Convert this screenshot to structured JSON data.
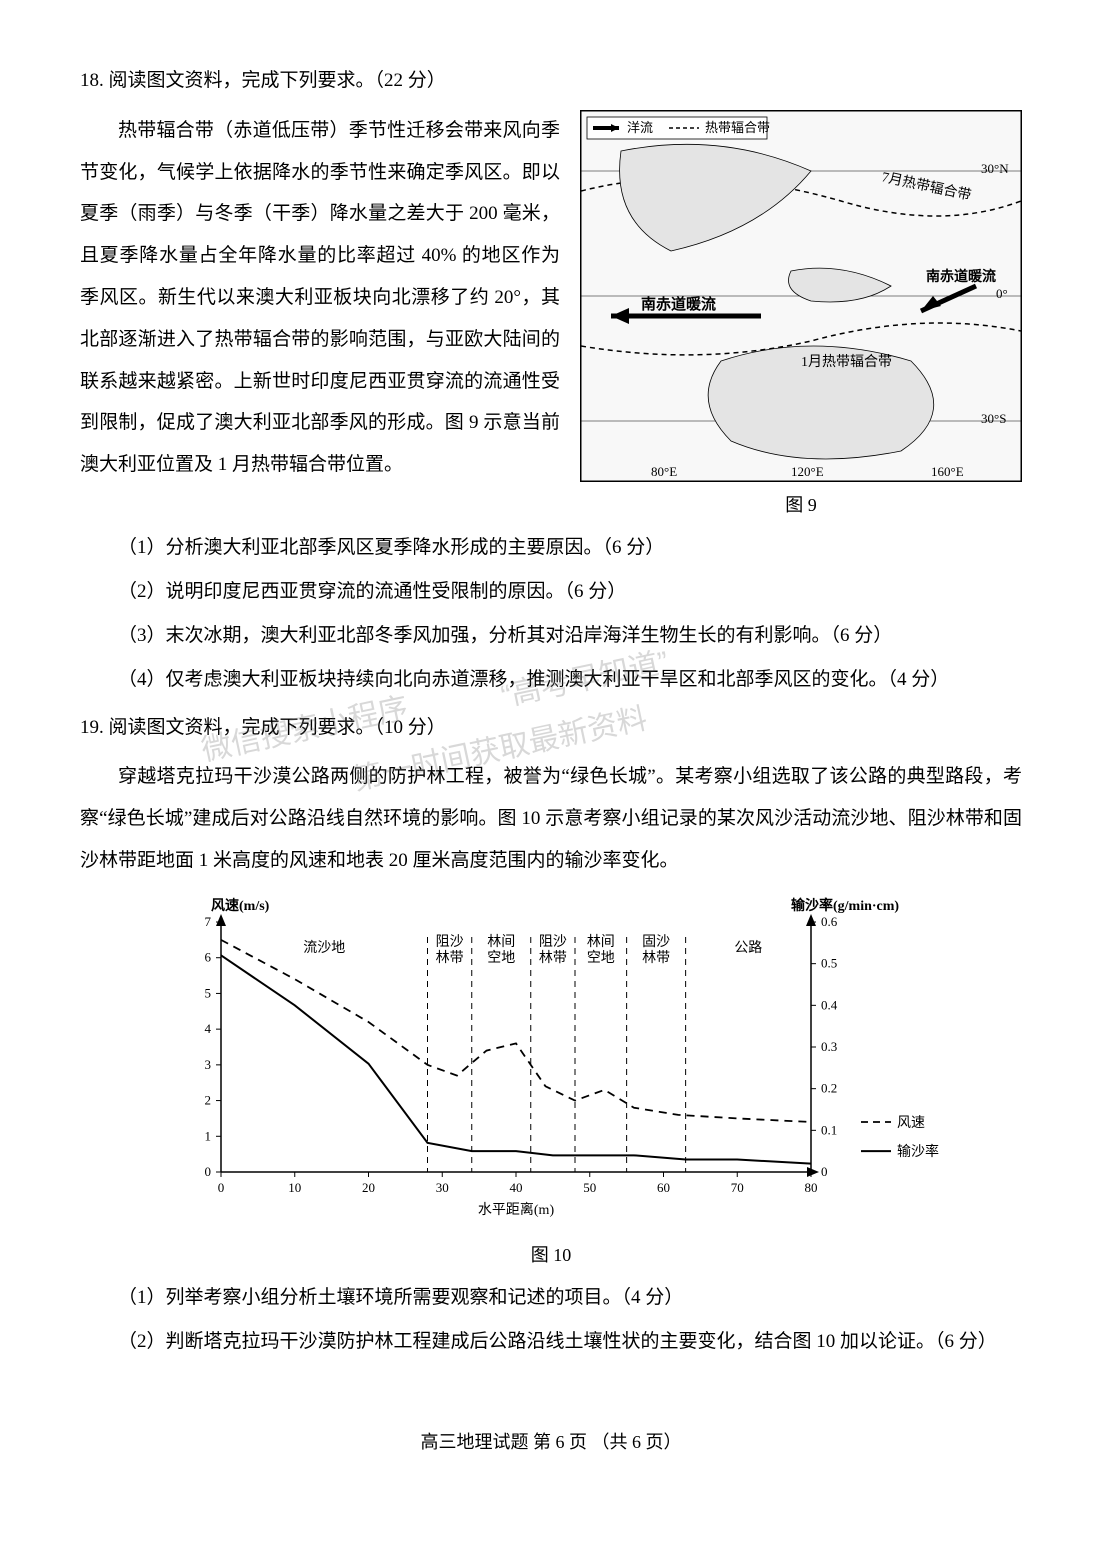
{
  "q18": {
    "header": "18. 阅读图文资料，完成下列要求。（22 分）",
    "paragraph_left": "热带辐合带（赤道低压带）季节性迁移会带来风向季节变化，气候学上依据降水的季节性来确定季风区。即以夏季（雨季）与冬季（干季）降水量之差大于 200 毫米，且夏季降水量占全年降水量的比率超过 40% 的地区作为季风区。新生代以来澳大利亚板块向北漂移了约 20°，其北部逐渐进入了热带辐合带的影响范围，与亚欧大陆间的联系越来越紧密。上新世时印度尼西亚贯穿流的流通性受到限制，促成了澳大利亚北部季风的形成。图 9 示意当前澳大利亚位置及 1 月热带辐合带位置。",
    "paragraph_after": "",
    "figure9": {
      "caption": "图 9",
      "legend_arrow": "洋流",
      "legend_dash": "热带辐合带",
      "label_top": "7月热带辐合带",
      "label_bottom": "1月热带辐合带",
      "label_current_left": "南赤道暖流",
      "label_current_right": "南赤道暖流",
      "xticks": [
        "80°E",
        "120°E",
        "160°E"
      ],
      "yticks": [
        "30°N",
        "0°",
        "30°S"
      ]
    },
    "subs": [
      "（1）分析澳大利亚北部季风区夏季降水形成的主要原因。（6 分）",
      "（2）说明印度尼西亚贯穿流的流通性受限制的原因。（6 分）",
      "（3）末次冰期，澳大利亚北部冬季风加强，分析其对沿岸海洋生物生长的有利影响。（6 分）",
      "（4）仅考虑澳大利亚板块持续向北向赤道漂移，推测澳大利亚干旱区和北部季风区的变化。（4 分）"
    ]
  },
  "q19": {
    "header": "19. 阅读图文资料，完成下列要求。（10 分）",
    "paragraph": "穿越塔克拉玛干沙漠公路两侧的防护林工程，被誉为“绿色长城”。某考察小组选取了该公路的典型路段，考察“绿色长城”建成后对公路沿线自然环境的影响。图 10 示意考察小组记录的某次风沙活动流沙地、阻沙林带和固沙林带距地面 1 米高度的风速和地表 20 厘米高度范围内的输沙率变化。",
    "subs": [
      "（1）列举考察小组分析土壤环境所需要观察和记述的项目。（4 分）",
      "（2）判断塔克拉玛干沙漠防护林工程建成后公路沿线土壤性状的主要变化，结合图 10 加以论证。（6 分）"
    ],
    "chart": {
      "type": "line",
      "title_bottom": "图 10",
      "x_label": "水平距离(m)",
      "y_left_label": "风速(m/s)",
      "y_right_label": "输沙率(g/min·cm)",
      "x_ticks": [
        0,
        10,
        20,
        30,
        40,
        50,
        60,
        70,
        80
      ],
      "y_left_ticks": [
        0,
        1,
        2,
        3,
        4,
        5,
        6,
        7
      ],
      "y_right_ticks": [
        0,
        0.1,
        0.2,
        0.3,
        0.4,
        0.5,
        0.6
      ],
      "x_range": [
        0,
        80
      ],
      "y_left_range": [
        0,
        7
      ],
      "y_right_range": [
        0,
        0.6
      ],
      "regions": [
        "流沙地",
        "阻沙林带",
        "林间空地",
        "阻沙林带",
        "林间空地",
        "固沙林带",
        "公路"
      ],
      "region_boundaries": [
        0,
        28,
        34,
        42,
        48,
        55,
        63,
        80
      ],
      "wind_points": [
        [
          0,
          6.5
        ],
        [
          10,
          5.4
        ],
        [
          20,
          4.2
        ],
        [
          28,
          3.0
        ],
        [
          32,
          2.7
        ],
        [
          36,
          3.4
        ],
        [
          40,
          3.6
        ],
        [
          44,
          2.4
        ],
        [
          48,
          2.0
        ],
        [
          52,
          2.3
        ],
        [
          56,
          1.8
        ],
        [
          62,
          1.6
        ],
        [
          70,
          1.5
        ],
        [
          80,
          1.4
        ]
      ],
      "sand_points": [
        [
          0,
          0.52
        ],
        [
          10,
          0.4
        ],
        [
          20,
          0.26
        ],
        [
          28,
          0.07
        ],
        [
          34,
          0.05
        ],
        [
          40,
          0.05
        ],
        [
          45,
          0.04
        ],
        [
          50,
          0.04
        ],
        [
          56,
          0.04
        ],
        [
          63,
          0.03
        ],
        [
          70,
          0.03
        ],
        [
          80,
          0.02
        ]
      ],
      "legend_wind": "风速",
      "legend_sand": "输沙率",
      "colors": {
        "axis": "#000000",
        "wind_line": "#000000",
        "sand_line": "#000000",
        "background": "#ffffff"
      },
      "line_styles": {
        "wind": "dashed",
        "sand": "solid"
      },
      "font_size_label": 14,
      "font_size_tick": 13
    }
  },
  "watermarks": {
    "w1": "微信搜索小程序",
    "w2": "“高考早知道”",
    "w3": "第一时间获取最新资料"
  },
  "footer": "高三地理试题  第 6 页 （共 6 页）"
}
